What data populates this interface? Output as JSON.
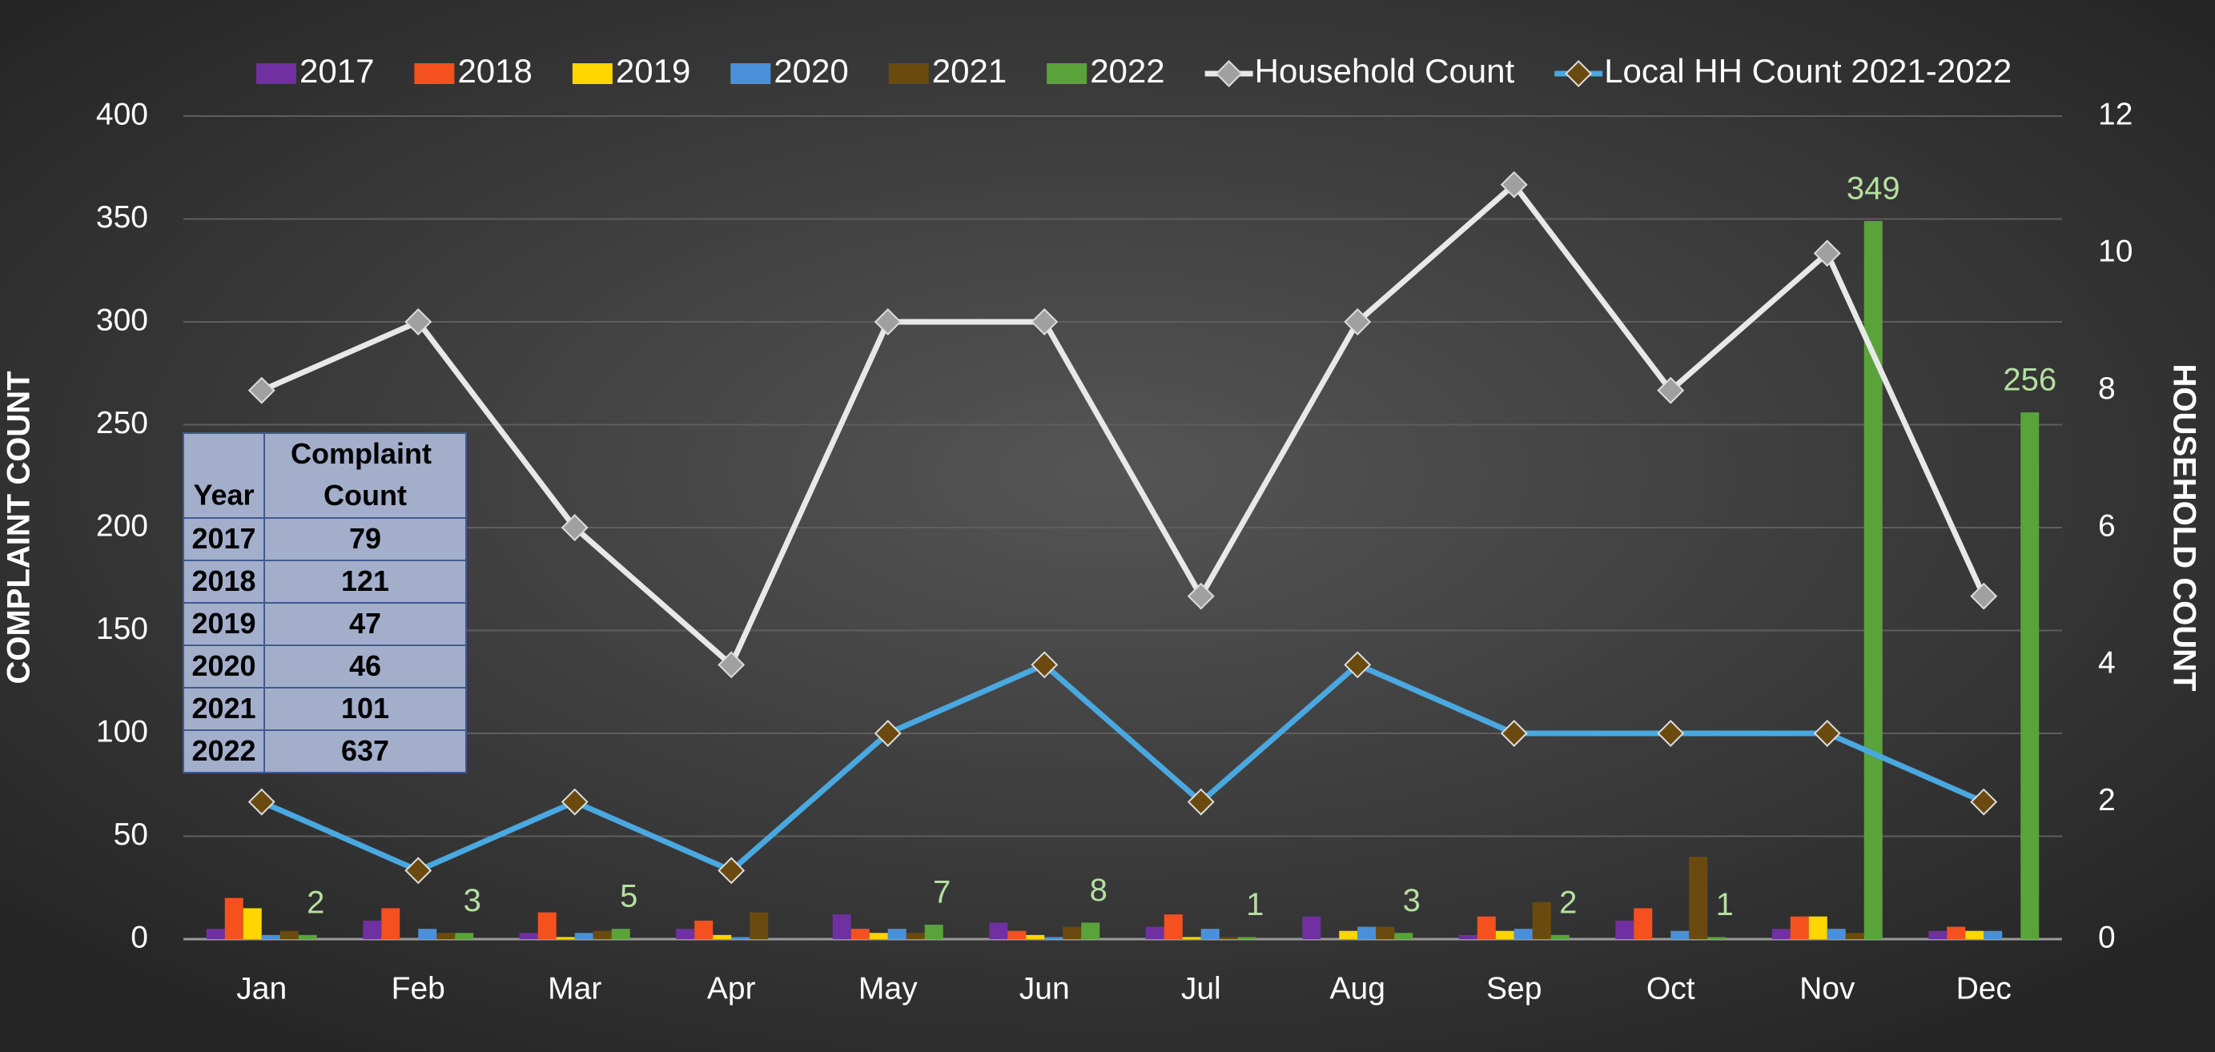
{
  "chart_data": {
    "type": "bar",
    "categories": [
      "Jan",
      "Feb",
      "Mar",
      "Apr",
      "May",
      "Jun",
      "Jul",
      "Aug",
      "Sep",
      "Oct",
      "Nov",
      "Dec"
    ],
    "ylabel": "COMPLAINT COUNT",
    "y2label": "HOUSEHOLD COUNT",
    "ylim": [
      0,
      400
    ],
    "yticks": [
      0,
      50,
      100,
      150,
      200,
      250,
      300,
      350,
      400
    ],
    "y2lim": [
      0,
      12
    ],
    "y2ticks": [
      0,
      2,
      4,
      6,
      8,
      10,
      12
    ],
    "grid": true,
    "legend": "top",
    "series": [
      {
        "name": "2017",
        "type": "bar",
        "color": "#7030a0",
        "values": [
          5,
          9,
          3,
          5,
          12,
          8,
          6,
          11,
          2,
          9,
          5,
          4
        ]
      },
      {
        "name": "2018",
        "type": "bar",
        "color": "#f4511e",
        "values": [
          20,
          15,
          13,
          9,
          5,
          4,
          12,
          0,
          11,
          15,
          11,
          6
        ]
      },
      {
        "name": "2019",
        "type": "bar",
        "color": "#ffd600",
        "values": [
          15,
          0,
          1,
          2,
          3,
          2,
          1,
          4,
          4,
          0,
          11,
          4
        ]
      },
      {
        "name": "2020",
        "type": "bar",
        "color": "#4a90d9",
        "values": [
          2,
          5,
          3,
          1,
          5,
          1,
          5,
          6,
          5,
          4,
          5,
          4
        ]
      },
      {
        "name": "2021",
        "type": "bar",
        "color": "#6b4a10",
        "values": [
          4,
          3,
          4,
          13,
          3,
          6,
          1,
          6,
          18,
          40,
          3,
          0
        ]
      },
      {
        "name": "2022",
        "type": "bar",
        "color": "#5aa33a",
        "show_labels": true,
        "values": [
          2,
          3,
          5,
          0,
          7,
          8,
          1,
          3,
          2,
          1,
          349,
          256
        ]
      },
      {
        "name": "Household Count",
        "type": "line",
        "axis": "y2",
        "color": "#e8e8e8",
        "marker_color": "#a0a0a0",
        "values": [
          8,
          9,
          6,
          4,
          9,
          9,
          5,
          9,
          11,
          8,
          10,
          5
        ]
      },
      {
        "name": "Local HH Count 2021-2022",
        "type": "line",
        "axis": "y2",
        "color": "#4aa8e0",
        "marker_color": "#6b4a10",
        "values": [
          2,
          1,
          2,
          1,
          3,
          4,
          2,
          4,
          3,
          3,
          3,
          2
        ]
      }
    ]
  },
  "table": {
    "header": [
      "Year",
      "Complaint Count"
    ],
    "rows": [
      [
        "2017",
        "79"
      ],
      [
        "2018",
        "121"
      ],
      [
        "2019",
        "47"
      ],
      [
        "2020",
        "46"
      ],
      [
        "2021",
        "101"
      ],
      [
        "2022",
        "637"
      ]
    ]
  }
}
